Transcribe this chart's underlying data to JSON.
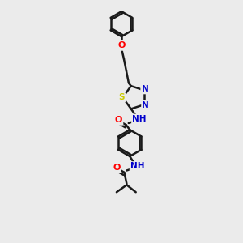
{
  "background_color": "#ebebeb",
  "bond_color": "#1a1a1a",
  "atom_colors": {
    "O": "#ff0000",
    "N": "#0000cc",
    "S": "#cccc00",
    "C": "#1a1a1a"
  },
  "figsize": [
    3.0,
    3.0
  ],
  "dpi": 100
}
